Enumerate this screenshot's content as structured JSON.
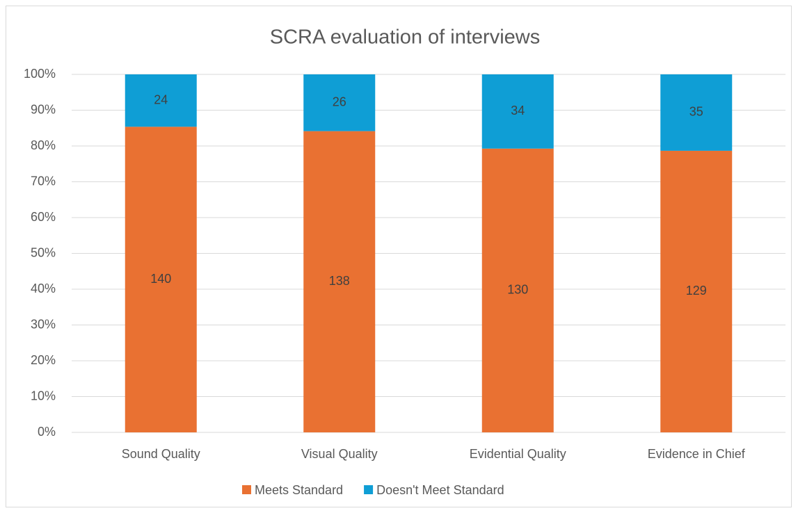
{
  "chart_data": {
    "type": "bar",
    "stacked": "percent",
    "title": "SCRA evaluation of interviews",
    "categories": [
      "Sound Quality",
      "Visual Quality",
      "Evidential Quality",
      "Evidence in Chief"
    ],
    "series": [
      {
        "name": "Meets Standard",
        "color": "#E97132",
        "values": [
          140,
          138,
          130,
          129
        ]
      },
      {
        "name": "Doesn't Meet Standard",
        "color": "#0F9ED5",
        "values": [
          24,
          26,
          34,
          35
        ]
      }
    ],
    "ylim": [
      0,
      100
    ],
    "yticks": [
      {
        "value": 0,
        "label": "0%"
      },
      {
        "value": 10,
        "label": "10%"
      },
      {
        "value": 20,
        "label": "20%"
      },
      {
        "value": 30,
        "label": "30%"
      },
      {
        "value": 40,
        "label": "40%"
      },
      {
        "value": 50,
        "label": "50%"
      },
      {
        "value": 60,
        "label": "60%"
      },
      {
        "value": 70,
        "label": "70%"
      },
      {
        "value": 80,
        "label": "80%"
      },
      {
        "value": 90,
        "label": "90%"
      },
      {
        "value": 100,
        "label": "100%"
      }
    ],
    "grid": true,
    "legend": "bottom"
  }
}
